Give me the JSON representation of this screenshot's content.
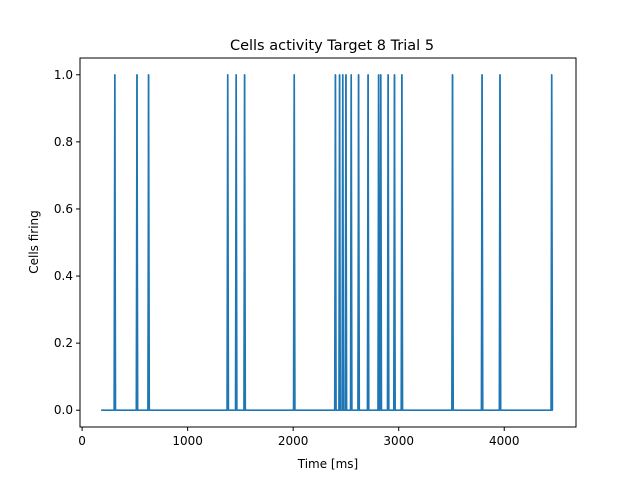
{
  "chart_data": {
    "type": "line",
    "title": "Cells activity Target 8 Trial 5",
    "xlabel": "Time [ms]",
    "ylabel": "Cells firing",
    "xlim": [
      -20,
      4680
    ],
    "ylim": [
      -0.05,
      1.05
    ],
    "x_ticks": [
      0,
      1000,
      2000,
      3000,
      4000
    ],
    "y_ticks": [
      0.0,
      0.2,
      0.4,
      0.6,
      0.8,
      1.0
    ],
    "x_tick_labels": [
      "0",
      "1000",
      "2000",
      "3000",
      "4000"
    ],
    "y_tick_labels": [
      "0.0",
      "0.2",
      "0.4",
      "0.6",
      "0.8",
      "1.0"
    ],
    "grid": false,
    "legend": "none",
    "series_color": "#1f77b4",
    "baseline_range": [
      180,
      4460
    ],
    "spike_times": [
      310,
      520,
      630,
      1380,
      1460,
      1540,
      2010,
      2400,
      2440,
      2470,
      2500,
      2550,
      2620,
      2710,
      2810,
      2830,
      2900,
      2960,
      3030,
      3510,
      3790,
      3960,
      4450
    ]
  }
}
